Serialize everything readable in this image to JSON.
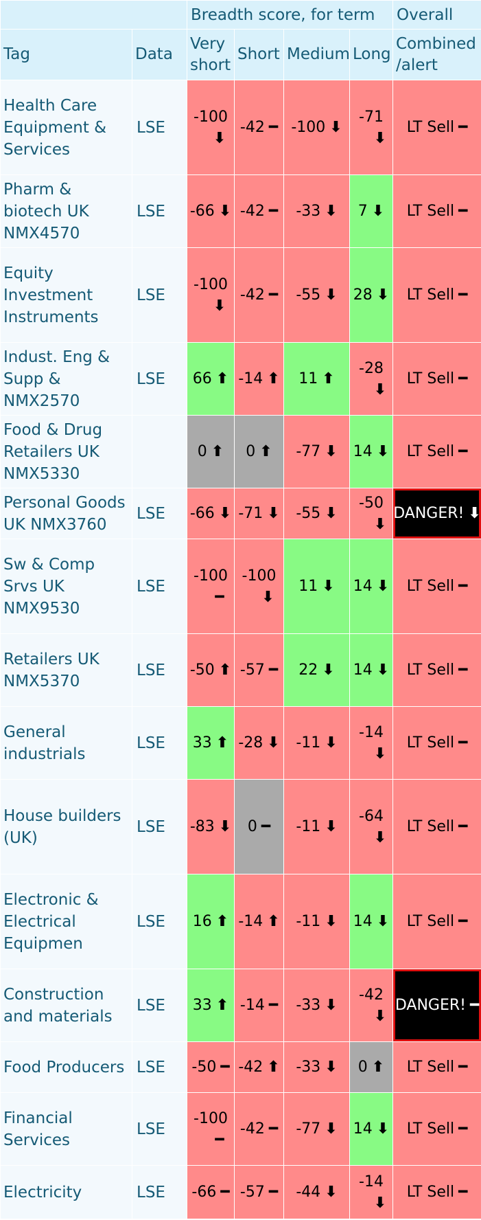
{
  "header": {
    "breadth_title": "Breadth score, for term",
    "overall_title": "Overall",
    "columns": [
      "Tag",
      "Data",
      "Very short",
      "Short",
      "Medium",
      "Long",
      "Combined /alert"
    ]
  },
  "icons": {
    "up": "arrow-up-icon",
    "down": "arrow-down-icon",
    "flat": "dash-icon"
  },
  "colors": {
    "red": "#ff8a8a",
    "green": "#88fa84",
    "gray": "#aaaaaa",
    "danger": "#000000",
    "header": "#d9f1fb",
    "text": "#155a75"
  },
  "rows": [
    {
      "tag": "Health Care Equipment & Services",
      "data": "LSE",
      "vs": {
        "v": "-100",
        "d": "down",
        "c": "red",
        "w": true
      },
      "s": {
        "v": "-42",
        "d": "flat",
        "c": "red"
      },
      "m": {
        "v": "-100",
        "d": "down",
        "c": "red"
      },
      "l": {
        "v": "-71",
        "d": "down",
        "c": "red",
        "w": true
      },
      "overall": {
        "v": "LT Sell",
        "d": "flat",
        "c": "red"
      }
    },
    {
      "tag": "Pharm & biotech UK NMX4570",
      "data": "LSE",
      "vs": {
        "v": "-66",
        "d": "down",
        "c": "red"
      },
      "s": {
        "v": "-42",
        "d": "flat",
        "c": "red"
      },
      "m": {
        "v": "-33",
        "d": "down",
        "c": "red"
      },
      "l": {
        "v": "7",
        "d": "down",
        "c": "green"
      },
      "overall": {
        "v": "LT Sell",
        "d": "flat",
        "c": "red"
      }
    },
    {
      "tag": "Equity Investment Instruments",
      "data": "LSE",
      "vs": {
        "v": "-100",
        "d": "down",
        "c": "red",
        "w": true
      },
      "s": {
        "v": "-42",
        "d": "flat",
        "c": "red"
      },
      "m": {
        "v": "-55",
        "d": "down",
        "c": "red"
      },
      "l": {
        "v": "28",
        "d": "down",
        "c": "green"
      },
      "overall": {
        "v": "LT Sell",
        "d": "flat",
        "c": "red"
      }
    },
    {
      "tag": "Indust. Eng & Supp & NMX2570",
      "data": "LSE",
      "vs": {
        "v": "66",
        "d": "up",
        "c": "green"
      },
      "s": {
        "v": "-14",
        "d": "up",
        "c": "red"
      },
      "m": {
        "v": "11",
        "d": "up",
        "c": "green"
      },
      "l": {
        "v": "-28",
        "d": "down",
        "c": "red",
        "w": true
      },
      "overall": {
        "v": "LT Sell",
        "d": "flat",
        "c": "red"
      }
    },
    {
      "tag": "Food & Drug Retailers UK NMX5330",
      "data": "",
      "vs": {
        "v": "0",
        "d": "up",
        "c": "gray"
      },
      "s": {
        "v": "0",
        "d": "up",
        "c": "gray"
      },
      "m": {
        "v": "-77",
        "d": "down",
        "c": "red"
      },
      "l": {
        "v": "14",
        "d": "down",
        "c": "green"
      },
      "overall": {
        "v": "LT Sell",
        "d": "flat",
        "c": "red"
      }
    },
    {
      "tag": "Personal Goods UK NMX3760",
      "data": "LSE",
      "vs": {
        "v": "-66",
        "d": "down",
        "c": "red"
      },
      "s": {
        "v": "-71",
        "d": "down",
        "c": "red"
      },
      "m": {
        "v": "-55",
        "d": "down",
        "c": "red"
      },
      "l": {
        "v": "-50",
        "d": "down",
        "c": "red",
        "w": true
      },
      "overall": {
        "v": "DANGER!",
        "d": "down",
        "c": "danger"
      }
    },
    {
      "tag": "Sw & Comp Srvs UK NMX9530",
      "data": "LSE",
      "vs": {
        "v": "-100",
        "d": "flat",
        "c": "red",
        "w": true
      },
      "s": {
        "v": "-100",
        "d": "down",
        "c": "red",
        "w": true
      },
      "m": {
        "v": "11",
        "d": "down",
        "c": "green"
      },
      "l": {
        "v": "14",
        "d": "down",
        "c": "green"
      },
      "overall": {
        "v": "LT Sell",
        "d": "flat",
        "c": "red"
      }
    },
    {
      "tag": "Retailers UK NMX5370",
      "data": "LSE",
      "vs": {
        "v": "-50",
        "d": "up",
        "c": "red"
      },
      "s": {
        "v": "-57",
        "d": "flat",
        "c": "red"
      },
      "m": {
        "v": "22",
        "d": "down",
        "c": "green"
      },
      "l": {
        "v": "14",
        "d": "down",
        "c": "green"
      },
      "overall": {
        "v": "LT Sell",
        "d": "flat",
        "c": "red"
      }
    },
    {
      "tag": "General industrials",
      "data": "LSE",
      "vs": {
        "v": "33",
        "d": "up",
        "c": "green"
      },
      "s": {
        "v": "-28",
        "d": "down",
        "c": "red"
      },
      "m": {
        "v": "-11",
        "d": "down",
        "c": "red"
      },
      "l": {
        "v": "-14",
        "d": "down",
        "c": "red",
        "w": true
      },
      "overall": {
        "v": "LT Sell",
        "d": "flat",
        "c": "red"
      }
    },
    {
      "tag": "House builders (UK)",
      "data": "LSE",
      "vs": {
        "v": "-83",
        "d": "down",
        "c": "red"
      },
      "s": {
        "v": "0",
        "d": "flat",
        "c": "gray"
      },
      "m": {
        "v": "-11",
        "d": "down",
        "c": "red"
      },
      "l": {
        "v": "-64",
        "d": "down",
        "c": "red",
        "w": true
      },
      "overall": {
        "v": "LT Sell",
        "d": "flat",
        "c": "red"
      }
    },
    {
      "tag": "Electronic & Electrical Equipmen",
      "data": "LSE",
      "vs": {
        "v": "16",
        "d": "up",
        "c": "green"
      },
      "s": {
        "v": "-14",
        "d": "up",
        "c": "red"
      },
      "m": {
        "v": "-11",
        "d": "down",
        "c": "red"
      },
      "l": {
        "v": "14",
        "d": "down",
        "c": "green"
      },
      "overall": {
        "v": "LT Sell",
        "d": "flat",
        "c": "red"
      }
    },
    {
      "tag": "Construction and materials",
      "data": "LSE",
      "vs": {
        "v": "33",
        "d": "up",
        "c": "green"
      },
      "s": {
        "v": "-14",
        "d": "flat",
        "c": "red"
      },
      "m": {
        "v": "-33",
        "d": "down",
        "c": "red"
      },
      "l": {
        "v": "-42",
        "d": "down",
        "c": "red",
        "w": true
      },
      "overall": {
        "v": "DANGER!",
        "d": "flat",
        "c": "danger"
      }
    },
    {
      "tag": "Food Producers",
      "data": "LSE",
      "vs": {
        "v": "-50",
        "d": "flat",
        "c": "red"
      },
      "s": {
        "v": "-42",
        "d": "up",
        "c": "red"
      },
      "m": {
        "v": "-33",
        "d": "down",
        "c": "red"
      },
      "l": {
        "v": "0",
        "d": "up",
        "c": "gray"
      },
      "overall": {
        "v": "LT Sell",
        "d": "flat",
        "c": "red"
      }
    },
    {
      "tag": "Financial Services",
      "data": "LSE",
      "vs": {
        "v": "-100",
        "d": "flat",
        "c": "red",
        "w": true
      },
      "s": {
        "v": "-42",
        "d": "flat",
        "c": "red"
      },
      "m": {
        "v": "-77",
        "d": "down",
        "c": "red"
      },
      "l": {
        "v": "14",
        "d": "down",
        "c": "green"
      },
      "overall": {
        "v": "LT Sell",
        "d": "flat",
        "c": "red"
      }
    },
    {
      "tag": "Electricity",
      "data": "LSE",
      "vs": {
        "v": "-66",
        "d": "flat",
        "c": "red"
      },
      "s": {
        "v": "-57",
        "d": "flat",
        "c": "red"
      },
      "m": {
        "v": "-44",
        "d": "down",
        "c": "red"
      },
      "l": {
        "v": "-14",
        "d": "down",
        "c": "red",
        "w": true
      },
      "overall": {
        "v": "LT Sell",
        "d": "flat",
        "c": "red"
      }
    }
  ]
}
